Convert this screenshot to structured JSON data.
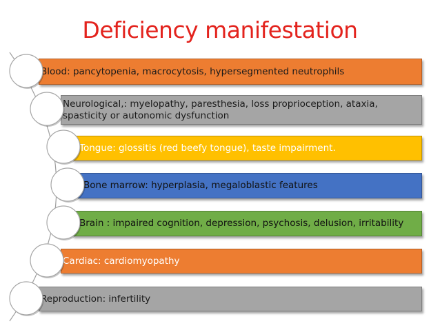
{
  "header": {
    "title": "Deficiency manifestation"
  },
  "items": [
    {
      "label": "Blood: pancytopenia, macrocytosis, hypersegmented neutrophils",
      "color": "#ed7d31"
    },
    {
      "label": "Neurological,: myelopathy, paresthesia, loss proprioception, ataxia, spasticity or autonomic dysfunction",
      "color": "#a5a5a5"
    },
    {
      "label": "Tongue: glossitis (red beefy tongue), taste impairment.",
      "color": "#ffc000"
    },
    {
      "label": "Bone marrow: hyperplasia, megaloblastic features",
      "color": "#4472c4"
    },
    {
      "label": "Brain : impaired cognition, depression, psychosis, delusion, irritability",
      "color": "#70ad47"
    },
    {
      "label": "Cardiac: cardiomyopathy",
      "color": "#ed7d31"
    },
    {
      "label": "Reproduction: infertility",
      "color": "#a5a5a5"
    }
  ]
}
